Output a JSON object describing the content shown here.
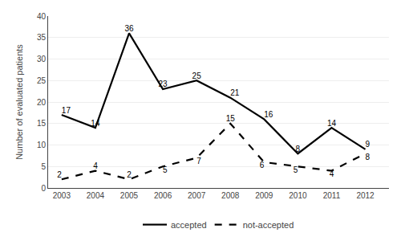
{
  "chart_data": {
    "type": "line",
    "x": [
      2003,
      2004,
      2005,
      2006,
      2007,
      2008,
      2009,
      2010,
      2011,
      2012
    ],
    "series": [
      {
        "name": "accepted",
        "color": "#000000",
        "line_style": "solid",
        "values": [
          17,
          14,
          36,
          23,
          25,
          21,
          16,
          8,
          14,
          9
        ]
      },
      {
        "name": "not-accepted",
        "color": "#000000",
        "line_style": "dashed",
        "values": [
          2,
          4,
          2,
          5,
          7,
          15,
          6,
          5,
          4,
          8
        ]
      }
    ],
    "ylabel": "Number of evaluated patients",
    "xlim": [
      2002.6,
      2012.7
    ],
    "xticks": [
      2003,
      2004,
      2005,
      2006,
      2007,
      2008,
      2009,
      2010,
      2011,
      2012
    ],
    "ylim": [
      0,
      40
    ],
    "yticks": [
      0,
      5,
      10,
      15,
      20,
      25,
      30,
      35,
      40
    ],
    "grid": true,
    "legend": "bottom",
    "data_labels": true
  }
}
